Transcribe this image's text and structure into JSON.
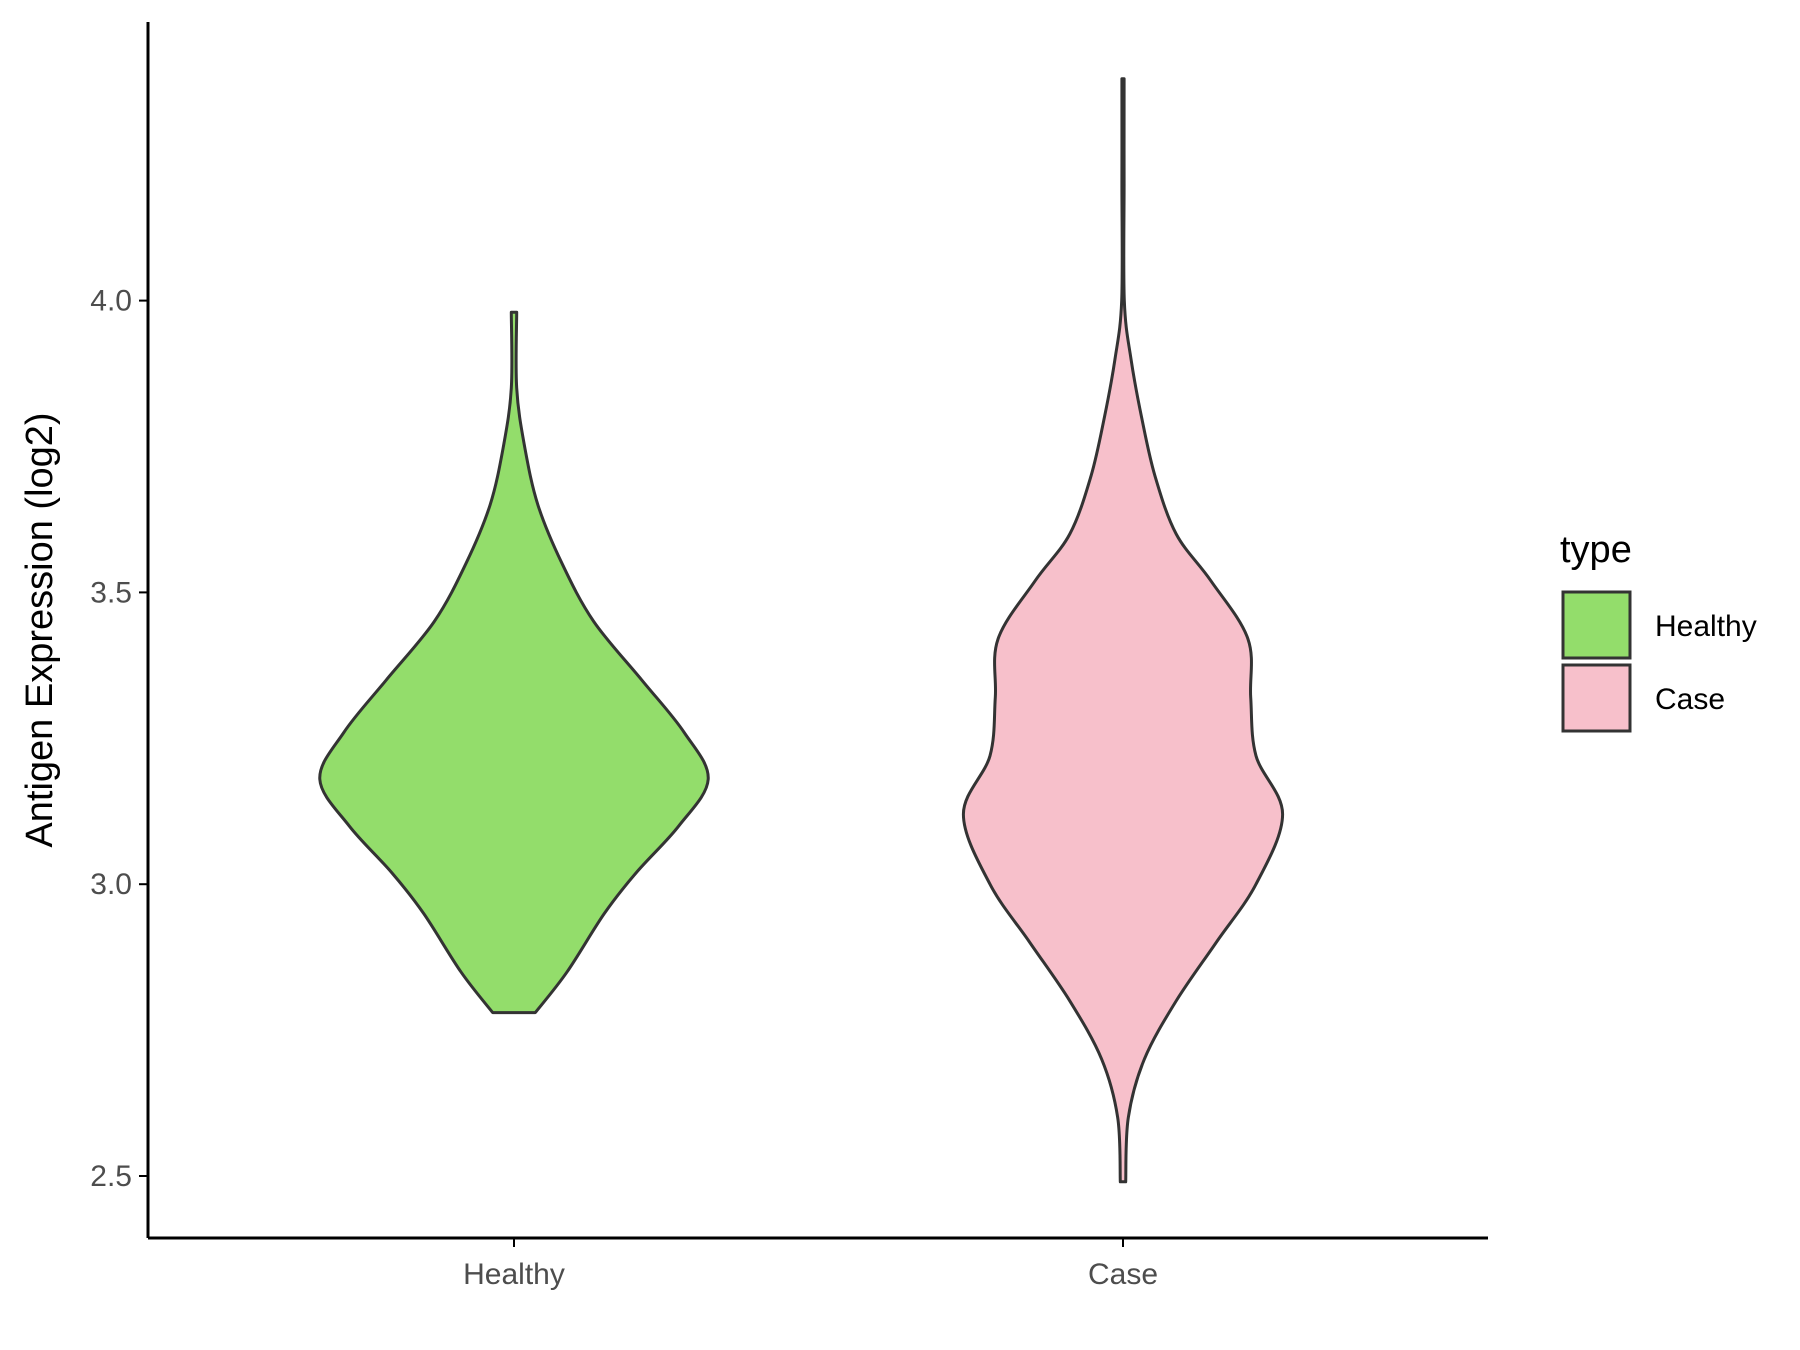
{
  "chart_data": {
    "type": "violin",
    "title": "",
    "xlabel": "",
    "ylabel": "Antigen Expression (log2)",
    "categories": [
      "Healthy",
      "Case"
    ],
    "ylim": [
      2.45,
      4.48
    ],
    "yticks": [
      2.5,
      3.0,
      3.5,
      4.0
    ],
    "ytick_labels": [
      "2.5",
      "3.0",
      "3.5",
      "4.0"
    ],
    "grid": false,
    "legend": {
      "title": "type",
      "position": "right",
      "entries": [
        {
          "label": "Healthy",
          "color": "#93dd6b"
        },
        {
          "label": "Case",
          "color": "#f7c0cb"
        }
      ]
    },
    "series": [
      {
        "name": "Healthy",
        "color": "#93dd6b",
        "min": 2.78,
        "max": 3.98,
        "density_profile": [
          {
            "y": 2.78,
            "w": 0.08
          },
          {
            "y": 2.85,
            "w": 0.2
          },
          {
            "y": 2.95,
            "w": 0.34
          },
          {
            "y": 3.02,
            "w": 0.46
          },
          {
            "y": 3.1,
            "w": 0.62
          },
          {
            "y": 3.18,
            "w": 0.73
          },
          {
            "y": 3.26,
            "w": 0.64
          },
          {
            "y": 3.35,
            "w": 0.48
          },
          {
            "y": 3.45,
            "w": 0.3
          },
          {
            "y": 3.55,
            "w": 0.18
          },
          {
            "y": 3.65,
            "w": 0.09
          },
          {
            "y": 3.75,
            "w": 0.04
          },
          {
            "y": 3.85,
            "w": 0.01
          },
          {
            "y": 3.98,
            "w": 0.01
          }
        ]
      },
      {
        "name": "Case",
        "color": "#f7c0cb",
        "min": 2.49,
        "max": 4.38,
        "density_profile": [
          {
            "y": 2.49,
            "w": 0.01
          },
          {
            "y": 2.6,
            "w": 0.02
          },
          {
            "y": 2.7,
            "w": 0.08
          },
          {
            "y": 2.8,
            "w": 0.2
          },
          {
            "y": 2.9,
            "w": 0.35
          },
          {
            "y": 3.0,
            "w": 0.5
          },
          {
            "y": 3.12,
            "w": 0.6
          },
          {
            "y": 3.22,
            "w": 0.5
          },
          {
            "y": 3.32,
            "w": 0.48
          },
          {
            "y": 3.42,
            "w": 0.47
          },
          {
            "y": 3.52,
            "w": 0.33
          },
          {
            "y": 3.6,
            "w": 0.2
          },
          {
            "y": 3.7,
            "w": 0.12
          },
          {
            "y": 3.8,
            "w": 0.07
          },
          {
            "y": 3.9,
            "w": 0.03
          },
          {
            "y": 4.0,
            "w": 0.005
          },
          {
            "y": 4.2,
            "w": 0.004
          },
          {
            "y": 4.38,
            "w": 0.004
          }
        ]
      }
    ]
  }
}
